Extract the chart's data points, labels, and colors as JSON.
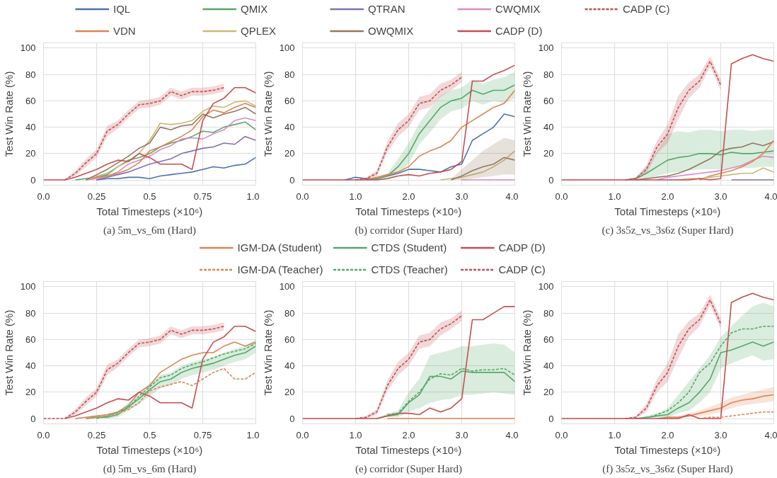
{
  "chart_data": [
    {
      "type": "line",
      "title": "(a) 5m_vs_6m (Hard)",
      "xlabel": "Total Timesteps (×10⁶)",
      "ylabel": "Test Win Rate (%)",
      "grid": true,
      "xlim": [
        0,
        1
      ],
      "xticks": [
        {
          "value": 0,
          "label": "0.0"
        },
        0.25,
        0.5,
        0.75,
        {
          "value": 1,
          "label": "1.0"
        }
      ],
      "ylim": [
        -4,
        104
      ],
      "yticks": [
        0,
        20,
        40,
        60,
        80,
        100
      ],
      "x": [
        0,
        0.05,
        0.1,
        0.15,
        0.2,
        0.25,
        0.3,
        0.35,
        0.4,
        0.45,
        0.5,
        0.55,
        0.6,
        0.65,
        0.7,
        0.75,
        0.8,
        0.85,
        0.9,
        0.95,
        1.0
      ],
      "series": [
        {
          "color": "#4c72b0",
          "values": [
            null,
            null,
            null,
            null,
            null,
            0,
            1,
            1,
            2,
            2,
            1,
            3,
            4,
            5,
            6,
            8,
            10,
            9,
            11,
            12,
            17
          ]
        },
        {
          "color": "#55a868",
          "values": [
            null,
            null,
            null,
            0,
            1,
            2,
            4,
            10,
            15,
            17,
            20,
            25,
            28,
            30,
            33,
            37,
            36,
            40,
            42,
            44,
            38
          ]
        },
        {
          "color": "#8172b3",
          "values": [
            null,
            null,
            null,
            null,
            null,
            0,
            2,
            4,
            6,
            9,
            12,
            14,
            16,
            20,
            22,
            24,
            25,
            28,
            27,
            33,
            30
          ]
        },
        {
          "color": "#da8bc3",
          "values": [
            null,
            null,
            null,
            null,
            0,
            1,
            3,
            6,
            12,
            15,
            18,
            23,
            26,
            31,
            32,
            31,
            35,
            38,
            45,
            47,
            45
          ]
        },
        {
          "color": "#c44e52",
          "line_style": "dashed",
          "values": [
            null,
            null,
            0,
            5,
            13,
            20,
            37,
            42,
            50,
            57,
            58,
            60,
            67,
            64,
            67,
            67,
            68,
            70,
            null,
            null,
            null
          ],
          "lower": [
            null,
            null,
            0,
            3,
            10,
            17,
            33,
            39,
            47,
            54,
            55,
            57,
            64,
            61,
            64,
            64,
            65,
            67,
            null,
            null,
            null
          ],
          "upper": [
            null,
            null,
            0,
            7,
            16,
            23,
            41,
            45,
            53,
            60,
            61,
            63,
            70,
            67,
            70,
            70,
            71,
            73,
            null,
            null,
            null
          ]
        },
        {
          "color": "#dd8452",
          "values": [
            null,
            null,
            null,
            null,
            0,
            2,
            3,
            5,
            8,
            13,
            22,
            25,
            29,
            33,
            38,
            48,
            53,
            51,
            55,
            58,
            55
          ]
        },
        {
          "color": "#ccb974",
          "values": [
            null,
            null,
            null,
            null,
            0,
            3,
            5,
            10,
            14,
            20,
            30,
            43,
            42,
            43,
            45,
            52,
            56,
            55,
            59,
            60,
            56
          ]
        },
        {
          "color": "#937860",
          "values": [
            null,
            null,
            null,
            null,
            0,
            4,
            8,
            13,
            18,
            24,
            28,
            40,
            38,
            41,
            42,
            50,
            47,
            50,
            52,
            55,
            50
          ]
        },
        {
          "color": "#c44e52",
          "values": [
            0,
            0,
            0,
            2,
            5,
            8,
            12,
            15,
            14,
            20,
            17,
            12,
            12,
            12,
            8,
            45,
            58,
            62,
            70,
            70,
            66
          ]
        }
      ]
    },
    {
      "type": "line",
      "title": "(b) corridor (Super Hard)",
      "xlabel": "Total Timesteps (×10⁶)",
      "ylabel": "Test Win Rate (%)",
      "legend": "top",
      "grid": true,
      "xlim": [
        0,
        4
      ],
      "xticks": [
        {
          "value": 0,
          "label": "0.0"
        },
        {
          "value": 1,
          "label": "1.0"
        },
        {
          "value": 2,
          "label": "2.0"
        },
        {
          "value": 3,
          "label": "3.0"
        },
        {
          "value": 4,
          "label": "4.0"
        }
      ],
      "ylim": [
        -4,
        104
      ],
      "yticks": [
        0,
        20,
        40,
        60,
        80,
        100
      ],
      "x": [
        0,
        0.2,
        0.4,
        0.6,
        0.8,
        1.0,
        1.2,
        1.4,
        1.6,
        1.8,
        2.0,
        2.2,
        2.4,
        2.6,
        2.8,
        3.0,
        3.2,
        3.4,
        3.6,
        3.8,
        4.0
      ],
      "series": [
        {
          "name": "IQL",
          "color": "#4c72b0",
          "values": [
            null,
            null,
            null,
            null,
            0,
            2,
            1,
            1,
            3,
            5,
            8,
            8,
            7,
            6,
            10,
            12,
            30,
            35,
            40,
            50,
            48
          ]
        },
        {
          "name": "QMIX",
          "color": "#55a868",
          "values": [
            null,
            null,
            null,
            null,
            null,
            null,
            0,
            1,
            3,
            10,
            20,
            35,
            45,
            55,
            60,
            62,
            68,
            65,
            68,
            68,
            72
          ],
          "lower": [
            null,
            null,
            null,
            null,
            null,
            null,
            0,
            0,
            1,
            4,
            12,
            27,
            36,
            46,
            52,
            54,
            60,
            57,
            60,
            58,
            62
          ],
          "upper": [
            null,
            null,
            null,
            null,
            null,
            null,
            0,
            2,
            5,
            16,
            28,
            43,
            54,
            64,
            68,
            70,
            76,
            73,
            76,
            78,
            82
          ]
        },
        {
          "name": "QTRAN",
          "color": "#8172b3",
          "values": [
            null,
            null,
            null,
            null,
            null,
            null,
            null,
            null,
            null,
            null,
            null,
            null,
            null,
            null,
            null,
            null,
            null,
            null,
            null,
            null,
            null
          ]
        },
        {
          "name": "CWQMIX",
          "color": "#da8bc3",
          "values": [
            null,
            null,
            null,
            null,
            null,
            null,
            null,
            null,
            null,
            null,
            null,
            null,
            null,
            null,
            null,
            0,
            0,
            0,
            0,
            0,
            0
          ]
        },
        {
          "name": "CADP (C)",
          "color": "#c44e52",
          "line_style": "dashed",
          "values": [
            null,
            null,
            null,
            null,
            null,
            0,
            1,
            5,
            25,
            38,
            45,
            58,
            60,
            68,
            72,
            78,
            null,
            null,
            null,
            null,
            null
          ],
          "lower": [
            null,
            null,
            null,
            null,
            null,
            0,
            0,
            3,
            21,
            33,
            40,
            53,
            55,
            63,
            68,
            74,
            null,
            null,
            null,
            null,
            null
          ],
          "upper": [
            null,
            null,
            null,
            null,
            null,
            0,
            2,
            7,
            29,
            43,
            50,
            63,
            65,
            73,
            76,
            82,
            null,
            null,
            null,
            null,
            null
          ]
        },
        {
          "name": "VDN",
          "color": "#dd8452",
          "values": [
            null,
            null,
            null,
            null,
            null,
            null,
            0,
            2,
            4,
            6,
            10,
            18,
            22,
            25,
            30,
            40,
            45,
            50,
            55,
            58,
            68
          ]
        },
        {
          "name": "QPLEX",
          "color": "#ccb974",
          "values": [
            null,
            null,
            null,
            null,
            null,
            null,
            null,
            null,
            null,
            null,
            null,
            null,
            null,
            0,
            1,
            2,
            4,
            6,
            10,
            15,
            22
          ]
        },
        {
          "name": "OWQMIX",
          "color": "#937860",
          "values": [
            null,
            null,
            null,
            null,
            null,
            null,
            null,
            null,
            null,
            null,
            null,
            null,
            null,
            null,
            0,
            3,
            7,
            10,
            12,
            17,
            15
          ],
          "lower": [
            null,
            null,
            null,
            null,
            null,
            null,
            null,
            null,
            null,
            null,
            null,
            null,
            null,
            null,
            0,
            0,
            1,
            2,
            3,
            4,
            4
          ],
          "upper": [
            null,
            null,
            null,
            null,
            null,
            null,
            null,
            null,
            null,
            null,
            null,
            null,
            null,
            null,
            1,
            8,
            15,
            22,
            27,
            32,
            30
          ]
        },
        {
          "name": "CADP (D)",
          "color": "#c44e52",
          "values": [
            0,
            0,
            0,
            0,
            0,
            0,
            0,
            0,
            1,
            3,
            4,
            3,
            5,
            6,
            8,
            14,
            75,
            75,
            80,
            83,
            87
          ]
        }
      ]
    },
    {
      "type": "line",
      "title": "(c) 3s5z_vs_3s6z (Super Hard)",
      "xlabel": "Total Timesteps (×10⁶)",
      "ylabel": "Test Win Rate (%)",
      "grid": true,
      "xlim": [
        0,
        4
      ],
      "xticks": [
        {
          "value": 0,
          "label": "0.0"
        },
        {
          "value": 1,
          "label": "1.0"
        },
        {
          "value": 2,
          "label": "2.0"
        },
        {
          "value": 3,
          "label": "3.0"
        },
        {
          "value": 4,
          "label": "4.0"
        }
      ],
      "ylim": [
        -4,
        104
      ],
      "yticks": [
        0,
        20,
        40,
        60,
        80,
        100
      ],
      "x": [
        0,
        0.2,
        0.4,
        0.6,
        0.8,
        1.0,
        1.2,
        1.4,
        1.6,
        1.8,
        2.0,
        2.2,
        2.4,
        2.6,
        2.8,
        3.0,
        3.2,
        3.4,
        3.6,
        3.8,
        4.0
      ],
      "series": [
        {
          "color": "#55a868",
          "values": [
            null,
            null,
            null,
            null,
            null,
            null,
            0,
            1,
            5,
            10,
            15,
            17,
            18,
            20,
            20,
            19,
            21,
            20,
            20,
            21,
            22
          ],
          "lower": [
            null,
            null,
            null,
            null,
            null,
            null,
            0,
            0,
            1,
            3,
            5,
            6,
            7,
            8,
            8,
            8,
            9,
            9,
            9,
            10,
            10
          ],
          "upper": [
            null,
            null,
            null,
            null,
            null,
            null,
            0,
            2,
            10,
            22,
            35,
            37,
            36,
            38,
            38,
            37,
            38,
            38,
            37,
            38,
            38
          ]
        },
        {
          "color": "#937860",
          "values": [
            null,
            null,
            null,
            null,
            null,
            null,
            null,
            0,
            1,
            2,
            3,
            5,
            8,
            12,
            16,
            22,
            24,
            25,
            28,
            26,
            29
          ]
        },
        {
          "color": "#da8bc3",
          "values": [
            null,
            null,
            null,
            null,
            null,
            null,
            null,
            null,
            null,
            0,
            2,
            3,
            4,
            5,
            6,
            7,
            9,
            11,
            15,
            18,
            17
          ]
        },
        {
          "color": "#dd8452",
          "values": [
            null,
            null,
            null,
            null,
            null,
            null,
            null,
            null,
            null,
            null,
            null,
            null,
            null,
            0,
            3,
            5,
            7,
            10,
            14,
            20,
            30
          ]
        },
        {
          "color": "#ccb974",
          "values": [
            null,
            null,
            null,
            null,
            null,
            null,
            null,
            null,
            null,
            null,
            null,
            0,
            1,
            1,
            2,
            3,
            4,
            5,
            5,
            9,
            6
          ]
        },
        {
          "color": "#c44e52",
          "line_style": "dashed",
          "values": [
            null,
            null,
            null,
            null,
            null,
            null,
            0,
            1,
            8,
            25,
            35,
            55,
            68,
            75,
            90,
            72,
            null,
            null,
            null,
            null,
            null
          ],
          "lower": [
            null,
            null,
            null,
            null,
            null,
            null,
            0,
            0,
            5,
            20,
            28,
            46,
            62,
            70,
            86,
            68,
            null,
            null,
            null,
            null,
            null
          ],
          "upper": [
            null,
            null,
            null,
            null,
            null,
            null,
            0,
            2,
            11,
            30,
            42,
            64,
            74,
            80,
            94,
            76,
            null,
            null,
            null,
            null,
            null
          ]
        },
        {
          "color": "#c44e52",
          "values": [
            0,
            0,
            0,
            0,
            0,
            0,
            0,
            0,
            0,
            0,
            0,
            0,
            0,
            1,
            0,
            1,
            88,
            92,
            95,
            92,
            90
          ]
        },
        {
          "color": "#8172b3",
          "values": [
            null,
            null,
            null,
            null,
            null,
            null,
            null,
            null,
            null,
            null,
            null,
            null,
            null,
            null,
            null,
            null,
            0,
            0,
            0,
            0,
            0
          ]
        }
      ]
    },
    {
      "type": "line",
      "title": "(d) 5m_vs_6m (Hard)",
      "xlabel": "Total Timesteps (×10⁶)",
      "ylabel": "Test Win Rate (%)",
      "grid": true,
      "xlim": [
        0,
        1
      ],
      "xticks": [
        {
          "value": 0,
          "label": "0.0"
        },
        0.25,
        0.5,
        0.75,
        {
          "value": 1,
          "label": "1.0"
        }
      ],
      "ylim": [
        -4,
        104
      ],
      "yticks": [
        0,
        20,
        40,
        60,
        80,
        100
      ],
      "x": [
        0,
        0.05,
        0.1,
        0.15,
        0.2,
        0.25,
        0.3,
        0.35,
        0.4,
        0.45,
        0.5,
        0.55,
        0.6,
        0.65,
        0.7,
        0.75,
        0.8,
        0.85,
        0.9,
        0.95,
        1.0
      ],
      "series": [
        {
          "color": "#dd8452",
          "values": [
            null,
            null,
            null,
            0,
            1,
            2,
            3,
            5,
            10,
            20,
            25,
            35,
            40,
            45,
            48,
            50,
            50,
            55,
            58,
            55,
            58
          ]
        },
        {
          "color": "#55a868",
          "values": [
            null,
            null,
            null,
            null,
            0,
            1,
            1,
            3,
            9,
            15,
            22,
            28,
            30,
            35,
            38,
            40,
            42,
            45,
            48,
            50,
            55
          ],
          "lower": [
            null,
            null,
            null,
            null,
            0,
            0,
            0,
            1,
            6,
            11,
            17,
            23,
            25,
            30,
            33,
            35,
            37,
            40,
            43,
            45,
            50
          ],
          "upper": [
            null,
            null,
            null,
            null,
            0,
            2,
            2,
            5,
            12,
            19,
            27,
            33,
            35,
            40,
            43,
            45,
            47,
            50,
            53,
            55,
            60
          ]
        },
        {
          "color": "#c44e52",
          "values": [
            null,
            null,
            0,
            2,
            5,
            8,
            12,
            15,
            14,
            20,
            17,
            12,
            12,
            12,
            8,
            45,
            58,
            62,
            70,
            70,
            66
          ]
        },
        {
          "color": "#dd8452",
          "line_style": "dashed",
          "values": [
            null,
            null,
            null,
            null,
            0,
            1,
            2,
            4,
            7,
            12,
            21,
            24,
            26,
            28,
            25,
            30,
            35,
            38,
            30,
            30,
            35
          ]
        },
        {
          "color": "#55a868",
          "line_style": "dashed",
          "values": [
            null,
            null,
            null,
            null,
            null,
            0,
            2,
            5,
            8,
            17,
            24,
            31,
            33,
            38,
            41,
            43,
            46,
            49,
            51,
            53,
            57
          ]
        },
        {
          "color": "#c44e52",
          "line_style": "dashed",
          "values": [
            0,
            0,
            0,
            5,
            13,
            20,
            37,
            42,
            50,
            57,
            58,
            60,
            67,
            64,
            67,
            67,
            68,
            70,
            null,
            null,
            null
          ],
          "lower": [
            0,
            0,
            0,
            3,
            10,
            17,
            33,
            39,
            47,
            54,
            55,
            57,
            64,
            61,
            64,
            64,
            65,
            67,
            null,
            null,
            null
          ],
          "upper": [
            0,
            0,
            0,
            7,
            16,
            23,
            41,
            45,
            53,
            60,
            61,
            63,
            70,
            67,
            70,
            70,
            71,
            73,
            null,
            null,
            null
          ]
        }
      ]
    },
    {
      "type": "line",
      "title": "(e) corridor (Super Hard)",
      "xlabel": "Total Timesteps (×10⁶)",
      "ylabel": "Test Win Rate (%)",
      "legend": "top",
      "grid": true,
      "xlim": [
        0,
        4
      ],
      "xticks": [
        {
          "value": 0,
          "label": "0.0"
        },
        {
          "value": 1,
          "label": "1.0"
        },
        {
          "value": 2,
          "label": "2.0"
        },
        {
          "value": 3,
          "label": "3.0"
        },
        {
          "value": 4,
          "label": "4.0"
        }
      ],
      "ylim": [
        -4,
        104
      ],
      "yticks": [
        0,
        20,
        40,
        60,
        80,
        100
      ],
      "x": [
        0,
        0.2,
        0.4,
        0.6,
        0.8,
        1.0,
        1.2,
        1.4,
        1.6,
        1.8,
        2.0,
        2.2,
        2.4,
        2.6,
        2.8,
        3.0,
        3.2,
        3.4,
        3.6,
        3.8,
        4.0
      ],
      "series": [
        {
          "name": "IGM-DA (Student)",
          "color": "#dd8452",
          "values": [
            null,
            null,
            null,
            null,
            null,
            null,
            null,
            null,
            0,
            0,
            0,
            0,
            0,
            0,
            0,
            0,
            0,
            0,
            0,
            0,
            0
          ]
        },
        {
          "name": "CTDS (Student)",
          "color": "#55a868",
          "values": [
            null,
            null,
            null,
            null,
            null,
            null,
            null,
            0,
            2,
            3,
            12,
            18,
            32,
            32,
            30,
            36,
            35,
            35,
            35,
            35,
            28
          ],
          "lower": [
            null,
            null,
            null,
            null,
            null,
            null,
            null,
            0,
            1,
            1,
            5,
            8,
            12,
            14,
            15,
            18,
            18,
            19,
            20,
            19,
            18
          ],
          "upper": [
            null,
            null,
            null,
            null,
            null,
            null,
            null,
            0,
            4,
            6,
            20,
            30,
            48,
            50,
            52,
            55,
            55,
            56,
            57,
            56,
            50
          ]
        },
        {
          "name": "CADP (D)",
          "color": "#c44e52",
          "values": [
            0,
            0,
            0,
            0,
            0,
            0,
            0,
            0,
            2,
            4,
            4,
            3,
            8,
            5,
            8,
            15,
            75,
            75,
            80,
            85,
            85
          ]
        },
        {
          "name": "IGM-DA (Teacher)",
          "color": "#dd8452",
          "line_style": "dashed",
          "values": [
            null,
            null,
            null,
            null,
            null,
            null,
            null,
            null,
            null,
            null,
            null,
            null,
            null,
            null,
            null,
            null,
            null,
            null,
            null,
            null,
            null
          ]
        },
        {
          "name": "CTDS (Teacher)",
          "color": "#55a868",
          "line_style": "dashed",
          "values": [
            null,
            null,
            null,
            null,
            null,
            null,
            null,
            null,
            3,
            4,
            13,
            20,
            30,
            34,
            33,
            38,
            36,
            37,
            37,
            38,
            33
          ]
        },
        {
          "name": "CADP (C)",
          "color": "#c44e52",
          "line_style": "dashed",
          "values": [
            null,
            null,
            null,
            null,
            null,
            0,
            1,
            5,
            25,
            38,
            45,
            58,
            60,
            68,
            72,
            78,
            null,
            null,
            null,
            null,
            null
          ],
          "lower": [
            null,
            null,
            null,
            null,
            null,
            0,
            0,
            3,
            21,
            33,
            40,
            53,
            55,
            63,
            68,
            74,
            null,
            null,
            null,
            null,
            null
          ],
          "upper": [
            null,
            null,
            null,
            null,
            null,
            0,
            2,
            7,
            29,
            43,
            50,
            63,
            65,
            73,
            76,
            82,
            null,
            null,
            null,
            null,
            null
          ]
        }
      ]
    },
    {
      "type": "line",
      "title": "(f) 3s5z_vs_3s6z (Super Hard)",
      "xlabel": "Total Timesteps (×10⁶)",
      "ylabel": "Test Win Rate (%)",
      "grid": true,
      "xlim": [
        0,
        4
      ],
      "xticks": [
        {
          "value": 0,
          "label": "0.0"
        },
        {
          "value": 1,
          "label": "1.0"
        },
        {
          "value": 2,
          "label": "2.0"
        },
        {
          "value": 3,
          "label": "3.0"
        },
        {
          "value": 4,
          "label": "4.0"
        }
      ],
      "ylim": [
        -4,
        104
      ],
      "yticks": [
        0,
        20,
        40,
        60,
        80,
        100
      ],
      "x": [
        0,
        0.2,
        0.4,
        0.6,
        0.8,
        1.0,
        1.2,
        1.4,
        1.6,
        1.8,
        2.0,
        2.2,
        2.4,
        2.6,
        2.8,
        3.0,
        3.2,
        3.4,
        3.6,
        3.8,
        4.0
      ],
      "series": [
        {
          "color": "#dd8452",
          "values": [
            null,
            null,
            null,
            null,
            null,
            null,
            null,
            null,
            null,
            0,
            1,
            1,
            2,
            4,
            6,
            8,
            12,
            14,
            15,
            17,
            18
          ],
          "lower": [
            null,
            null,
            null,
            null,
            null,
            null,
            null,
            null,
            null,
            0,
            0,
            0,
            1,
            2,
            3,
            5,
            8,
            10,
            11,
            12,
            13
          ],
          "upper": [
            null,
            null,
            null,
            null,
            null,
            null,
            null,
            null,
            null,
            0,
            2,
            2,
            4,
            6,
            9,
            12,
            16,
            18,
            20,
            22,
            24
          ]
        },
        {
          "color": "#55a868",
          "values": [
            null,
            null,
            null,
            null,
            null,
            null,
            null,
            0,
            1,
            2,
            3,
            8,
            12,
            20,
            30,
            50,
            52,
            55,
            58,
            55,
            58
          ],
          "lower": [
            null,
            null,
            null,
            null,
            null,
            null,
            null,
            0,
            0,
            1,
            1,
            4,
            6,
            12,
            20,
            38,
            42,
            45,
            48,
            44,
            45
          ],
          "upper": [
            null,
            null,
            null,
            null,
            null,
            null,
            null,
            0,
            2,
            4,
            8,
            18,
            28,
            38,
            48,
            62,
            70,
            78,
            85,
            88,
            85
          ]
        },
        {
          "color": "#c44e52",
          "values": [
            0,
            0,
            0,
            0,
            0,
            0,
            0,
            0,
            0,
            0,
            0,
            0,
            3,
            0,
            0,
            0,
            88,
            92,
            95,
            92,
            90
          ]
        },
        {
          "color": "#dd8452",
          "line_style": "dashed",
          "values": [
            null,
            null,
            null,
            null,
            null,
            null,
            null,
            null,
            null,
            null,
            null,
            null,
            null,
            0,
            1,
            1,
            2,
            3,
            4,
            5,
            5
          ]
        },
        {
          "color": "#55a868",
          "line_style": "dashed",
          "values": [
            null,
            null,
            null,
            null,
            null,
            null,
            null,
            null,
            0,
            3,
            6,
            12,
            20,
            35,
            42,
            55,
            65,
            68,
            68,
            70,
            70
          ]
        },
        {
          "color": "#c44e52",
          "line_style": "dashed",
          "values": [
            null,
            null,
            null,
            null,
            null,
            null,
            0,
            1,
            8,
            25,
            35,
            55,
            68,
            75,
            90,
            72,
            null,
            null,
            null,
            null,
            null
          ],
          "lower": [
            null,
            null,
            null,
            null,
            null,
            null,
            0,
            0,
            5,
            20,
            28,
            46,
            62,
            70,
            86,
            68,
            null,
            null,
            null,
            null,
            null
          ],
          "upper": [
            null,
            null,
            null,
            null,
            null,
            null,
            0,
            2,
            11,
            30,
            42,
            64,
            74,
            80,
            94,
            76,
            null,
            null,
            null,
            null,
            null
          ]
        }
      ]
    }
  ]
}
